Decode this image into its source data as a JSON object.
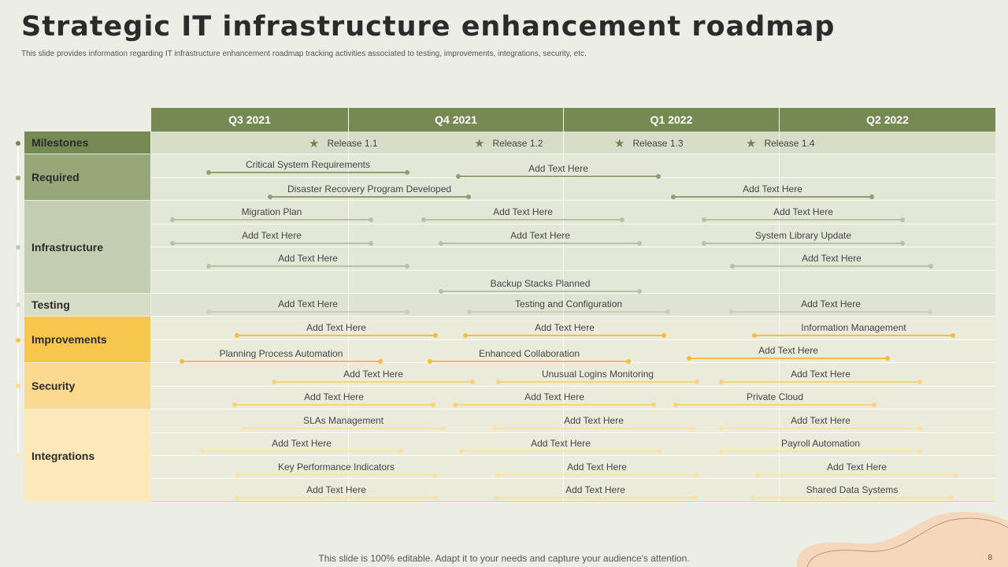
{
  "header": {
    "title": "Strategic IT infrastructure enhancement roadmap",
    "subtitle": "This slide provides information regarding IT infrastructure enhancement roadmap tracking activities associated to testing, improvements, integrations, security, etc."
  },
  "quarters": [
    "Q3 2021",
    "Q4 2021",
    "Q1 2022",
    "Q2 2022"
  ],
  "categories": [
    {
      "label": "Milestones",
      "color": "#748a52"
    },
    {
      "label": "Required",
      "color": "#97a779"
    },
    {
      "label": "Infrastructure",
      "color": "#c3cdb0"
    },
    {
      "label": "Testing",
      "color": "#d8ddc9"
    },
    {
      "label": "Improvements",
      "color": "#f8c54d"
    },
    {
      "label": "Security",
      "color": "#fbd98f"
    },
    {
      "label": "Integrations",
      "color": "#fce8b8"
    }
  ],
  "milestones": [
    "Release 1.1",
    "Release 1.2",
    "Release 1.3",
    "Release 1.4"
  ],
  "tasks": [
    "Critical System Requirements",
    "Add Text Here",
    "Disaster Recovery Program Developed",
    "Add Text Here",
    "Migration Plan",
    "Add Text Here",
    "Add Text Here",
    "Add Text Here",
    "Add Text Here",
    "System Library Update",
    "Add Text Here",
    "Add Text Here",
    "Backup Stacks Planned",
    "Add Text Here",
    "Testing and Configuration",
    "Add Text Here",
    "Add Text Here",
    "Add Text Here",
    "Information Management",
    "Planning Process Automation",
    "Enhanced Collaboration",
    "Add Text Here",
    "Add Text Here",
    "Unusual Logins Monitoring",
    "Add Text Here",
    "Add Text Here",
    "Add Text Here",
    "Private Cloud",
    "SLAs Management",
    "Add Text Here",
    "Add Text Here",
    "Add Text Here",
    "Add Text Here",
    "Payroll Automation",
    "Key Performance Indicators",
    "Add Text Here",
    "Add Text Here",
    "Add Text Here",
    "Add Text Here",
    "Shared Data Systems"
  ],
  "footer": {
    "note": "This slide is 100% editable. Adapt it to your needs and capture your audience's attention.",
    "page_number": "8"
  },
  "colors": {
    "green_dark": "#748a52",
    "green_mid": "#97a779",
    "green_light": "#c3cdb0",
    "yellow": "#f8c54d",
    "yellow_mid": "#fbd98f",
    "yellow_light": "#fce8b8",
    "background": "#ecede4",
    "decor_peach": "#f5d8bb"
  }
}
